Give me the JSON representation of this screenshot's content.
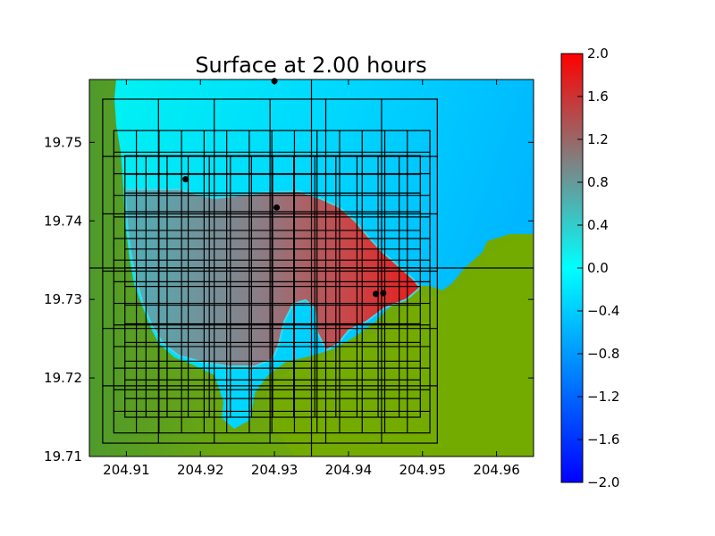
{
  "chart_data": {
    "type": "heatmap",
    "title": "Surface at 2.00 hours",
    "xlabel": "",
    "ylabel": "",
    "xlim": [
      204.905,
      204.965
    ],
    "ylim": [
      19.71,
      19.758
    ],
    "xticks": [
      204.91,
      204.92,
      204.93,
      204.94,
      204.95,
      204.96
    ],
    "xtick_labels": [
      "204.91",
      "204.92",
      "204.93",
      "204.94",
      "204.95",
      "204.96"
    ],
    "yticks": [
      19.71,
      19.72,
      19.73,
      19.74,
      19.75
    ],
    "ytick_labels": [
      "19.71",
      "19.72",
      "19.73",
      "19.74",
      "19.75"
    ],
    "colorbar": {
      "range": [
        -2.0,
        2.0
      ],
      "ticks": [
        2.0,
        1.6,
        1.2,
        0.8,
        0.4,
        0.0,
        -0.4,
        -0.8,
        -1.2,
        -1.6,
        -2.0
      ],
      "tick_labels": [
        "2.0",
        "1.6",
        "1.2",
        "0.8",
        "0.4",
        "0.0",
        "−0.4",
        "−0.8",
        "−1.2",
        "−1.6",
        "−2.0"
      ],
      "colors": [
        "#0000ff",
        "#00ffff",
        "#ff0000"
      ]
    },
    "land_color": "#6aa610",
    "gauges": [
      {
        "x": 204.93,
        "y": 19.7578
      },
      {
        "x": 204.918,
        "y": 19.7453
      },
      {
        "x": 204.9303,
        "y": 19.7417
      },
      {
        "x": 204.9437,
        "y": 19.7307
      },
      {
        "x": 204.9447,
        "y": 19.7308
      }
    ],
    "center_lines": {
      "x": 204.935,
      "y": 19.734
    },
    "grid_boxes": [
      {
        "x0": 204.9068,
        "x1": 204.952,
        "y0": 19.7117,
        "y1": 19.7555
      },
      {
        "x0": 204.9083,
        "x1": 204.951,
        "y0": 19.713,
        "y1": 19.7515
      },
      {
        "x0": 204.9098,
        "x1": 204.9497,
        "y0": 19.715,
        "y1": 19.7483
      }
    ]
  }
}
